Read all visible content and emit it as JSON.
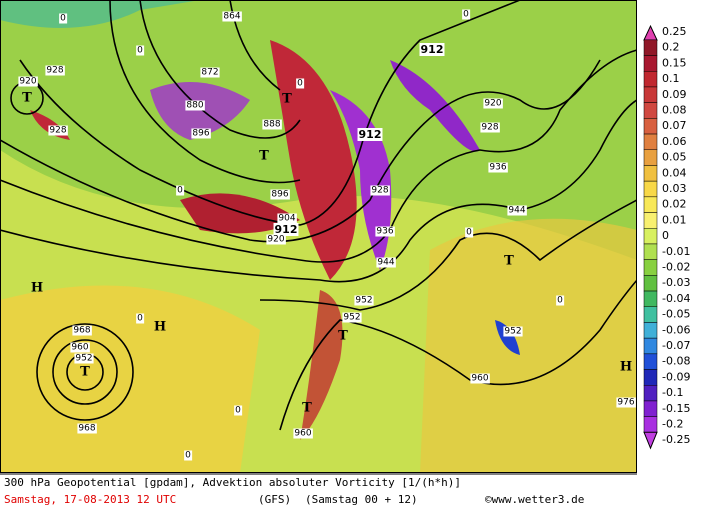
{
  "colorbar": {
    "labels": [
      "0.25",
      "0.2",
      "0.15",
      "0.1",
      "0.09",
      "0.08",
      "0.07",
      "0.06",
      "0.05",
      "0.04",
      "0.03",
      "0.02",
      "0.01",
      "0",
      "-0.01",
      "-0.02",
      "-0.03",
      "-0.04",
      "-0.05",
      "-0.06",
      "-0.07",
      "-0.08",
      "-0.09",
      "-0.1",
      "-0.15",
      "-0.2",
      "-0.25"
    ]
  },
  "contour_labels": [
    "864",
    "872",
    "880",
    "888",
    "896",
    "896",
    "904",
    "912",
    "920",
    "912",
    "912",
    "920",
    "928",
    "928",
    "920",
    "928",
    "928",
    "936",
    "936",
    "944",
    "944",
    "952",
    "952",
    "952",
    "960",
    "952",
    "968",
    "968",
    "960",
    "960",
    "976",
    "0",
    "0",
    "0",
    "0",
    "0",
    "0",
    "0",
    "0",
    "0",
    "0"
  ],
  "pressure_symbols": [
    "T",
    "T",
    "T",
    "T",
    "T",
    "T",
    "T",
    "H",
    "H",
    "H"
  ],
  "footer": {
    "description": "300 hPa Geopotential [gpdam], Advektion absoluter Vorticity [1/(h*h)]",
    "date": "Samstag, 17-08-2013  12 UTC",
    "model": "(GFS)",
    "run": "(Samstag 00 + 12)",
    "credit": "©www.wetter3.de"
  }
}
